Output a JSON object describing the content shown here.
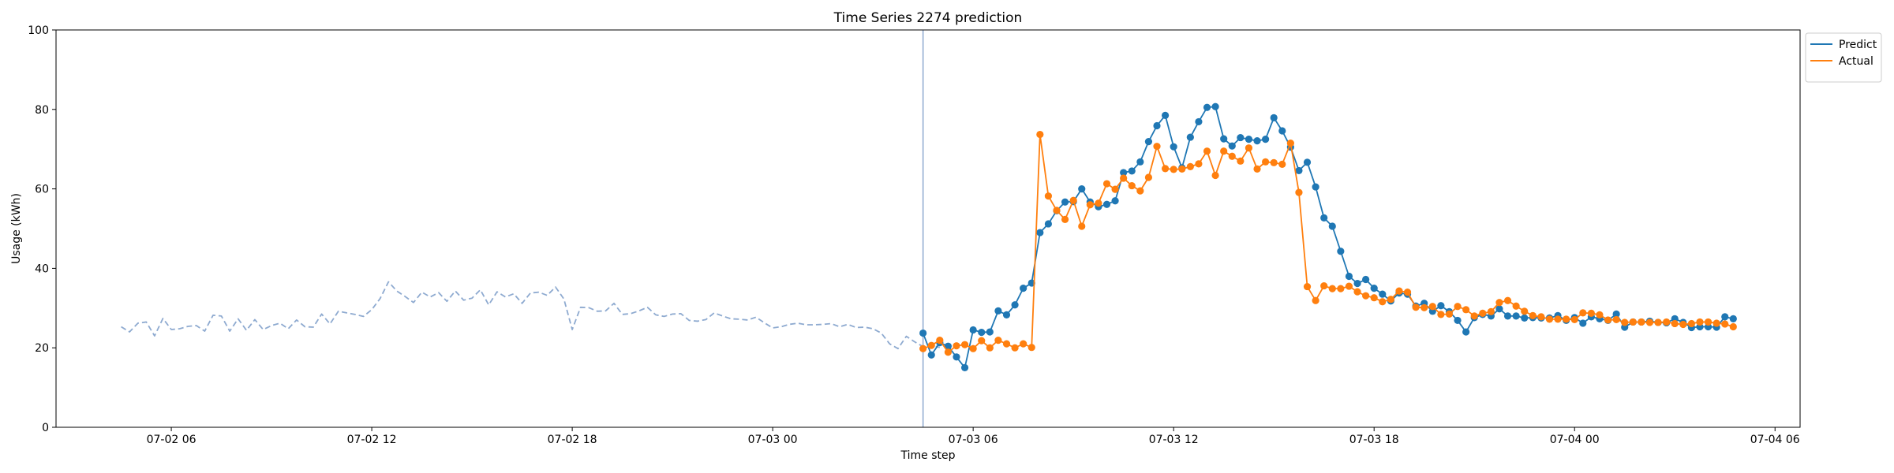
{
  "chart_data": {
    "type": "line",
    "title": "Time Series 2274 prediction",
    "xlabel": "Time step",
    "ylabel": "Usage (kWh)",
    "ylim": [
      0,
      100
    ],
    "yticks": [
      0,
      20,
      40,
      60,
      80,
      100
    ],
    "xlim": [
      "07-02 02:33",
      "07-04 06:45"
    ],
    "xticks": [
      {
        "value": "07-02 06:00",
        "label": "07-02 06"
      },
      {
        "value": "07-02 12:00",
        "label": "07-02 12"
      },
      {
        "value": "07-02 18:00",
        "label": "07-02 18"
      },
      {
        "value": "07-03 00:00",
        "label": "07-03 00"
      },
      {
        "value": "07-03 06:00",
        "label": "07-03 06"
      },
      {
        "value": "07-03 12:00",
        "label": "07-03 12"
      },
      {
        "value": "07-03 18:00",
        "label": "07-03 18"
      },
      {
        "value": "07-04 00:00",
        "label": "07-04 00"
      },
      {
        "value": "07-04 06:00",
        "label": "07-04 06"
      }
    ],
    "legend_position": "upper-right, outside plot",
    "forecast_start": "07-03 04:30",
    "series": [
      {
        "name": "",
        "style": "dashed",
        "color": "#8eaad0",
        "start": "07-02 04:30",
        "step_minutes": 15,
        "values": [
          25.3,
          24.0,
          26.2,
          26.5,
          23.0,
          27.4,
          24.6,
          24.8,
          25.4,
          25.6,
          24.2,
          28.2,
          28.0,
          24.2,
          27.3,
          24.4,
          27.1,
          24.6,
          25.6,
          26.2,
          24.8,
          27.0,
          25.3,
          25.2,
          28.5,
          26.0,
          29.2,
          28.8,
          28.4,
          27.9,
          29.6,
          32.4,
          36.6,
          34.3,
          32.9,
          31.4,
          34.0,
          32.8,
          33.9,
          31.7,
          34.3,
          32.0,
          32.5,
          34.6,
          30.8,
          34.1,
          32.8,
          33.6,
          31.2,
          33.8,
          34.0,
          33.2,
          35.3,
          32.3,
          24.6,
          30.2,
          30.1,
          29.2,
          29.3,
          31.2,
          28.4,
          28.6,
          29.3,
          30.2,
          28.3,
          27.9,
          28.5,
          28.6,
          26.9,
          26.7,
          27.1,
          28.8,
          28.0,
          27.3,
          27.2,
          27.0,
          27.7,
          26.3,
          25.0,
          25.3,
          25.9,
          26.2,
          25.8,
          25.8,
          25.9,
          26.1,
          25.3,
          25.9,
          25.1,
          25.2,
          24.8,
          23.7,
          21.0,
          19.8,
          22.9,
          21.5,
          20.3,
          20.7,
          20.1
        ]
      },
      {
        "name": "Predict",
        "style": "solid-markers",
        "color": "#1f77b4",
        "start": "07-03 04:30",
        "step_minutes": 15,
        "values": [
          23.7,
          18.2,
          21.3,
          20.4,
          17.7,
          15.0,
          24.5,
          23.9,
          24.0,
          29.3,
          28.3,
          30.8,
          35.0,
          36.3,
          49.0,
          51.2,
          54.5,
          56.7,
          56.8,
          60.0,
          56.7,
          55.5,
          56.1,
          57.0,
          64.1,
          64.5,
          66.8,
          71.9,
          75.9,
          78.5,
          70.6,
          65.3,
          73.0,
          76.9,
          80.5,
          80.7,
          72.6,
          70.8,
          72.9,
          72.5,
          72.1,
          72.5,
          77.9,
          74.6,
          70.5,
          64.6,
          66.7,
          60.5,
          52.7,
          50.6,
          44.3,
          38.0,
          36.2,
          37.2,
          35.0,
          33.5,
          31.8,
          33.8,
          33.5,
          30.5,
          31.2,
          29.2,
          30.6,
          29.1,
          26.9,
          24.0,
          27.6,
          28.4,
          28.0,
          29.8,
          28.0,
          28.0,
          27.5,
          27.6,
          27.5,
          27.5,
          28.1,
          26.9,
          27.6,
          26.2,
          27.8,
          27.3,
          26.9,
          28.5,
          25.2,
          26.5,
          26.5,
          26.7,
          26.4,
          26.3,
          27.3,
          26.4,
          25.1,
          25.3,
          25.3,
          25.2,
          27.8,
          27.3
        ]
      },
      {
        "name": "Actual",
        "style": "solid-markers",
        "color": "#ff7f0e",
        "start": "07-03 04:30",
        "step_minutes": 15,
        "values": [
          19.8,
          20.6,
          21.9,
          18.9,
          20.5,
          20.8,
          19.8,
          21.8,
          20.0,
          21.9,
          21.0,
          20.0,
          21.0,
          20.1,
          73.7,
          58.2,
          54.6,
          52.3,
          57.1,
          50.6,
          56.0,
          56.4,
          61.3,
          59.9,
          62.7,
          60.8,
          59.5,
          62.9,
          70.7,
          65.1,
          64.9,
          65.0,
          65.6,
          66.3,
          69.5,
          63.4,
          69.5,
          68.2,
          67.0,
          70.3,
          65.0,
          66.8,
          66.6,
          66.2,
          71.5,
          59.1,
          35.4,
          31.9,
          35.6,
          34.9,
          34.9,
          35.5,
          34.1,
          33.1,
          32.6,
          31.6,
          32.2,
          34.3,
          34.0,
          30.2,
          30.1,
          30.4,
          28.4,
          28.5,
          30.4,
          29.6,
          28.0,
          28.7,
          29.1,
          31.4,
          31.9,
          30.5,
          29.2,
          28.1,
          27.8,
          27.2,
          27.2,
          27.2,
          27.1,
          28.8,
          28.7,
          28.3,
          27.0,
          27.1,
          26.4,
          26.5,
          26.5,
          26.4,
          26.4,
          26.5,
          26.1,
          25.9,
          26.1,
          26.5,
          26.5,
          26.2,
          26.0,
          25.3
        ]
      }
    ]
  }
}
